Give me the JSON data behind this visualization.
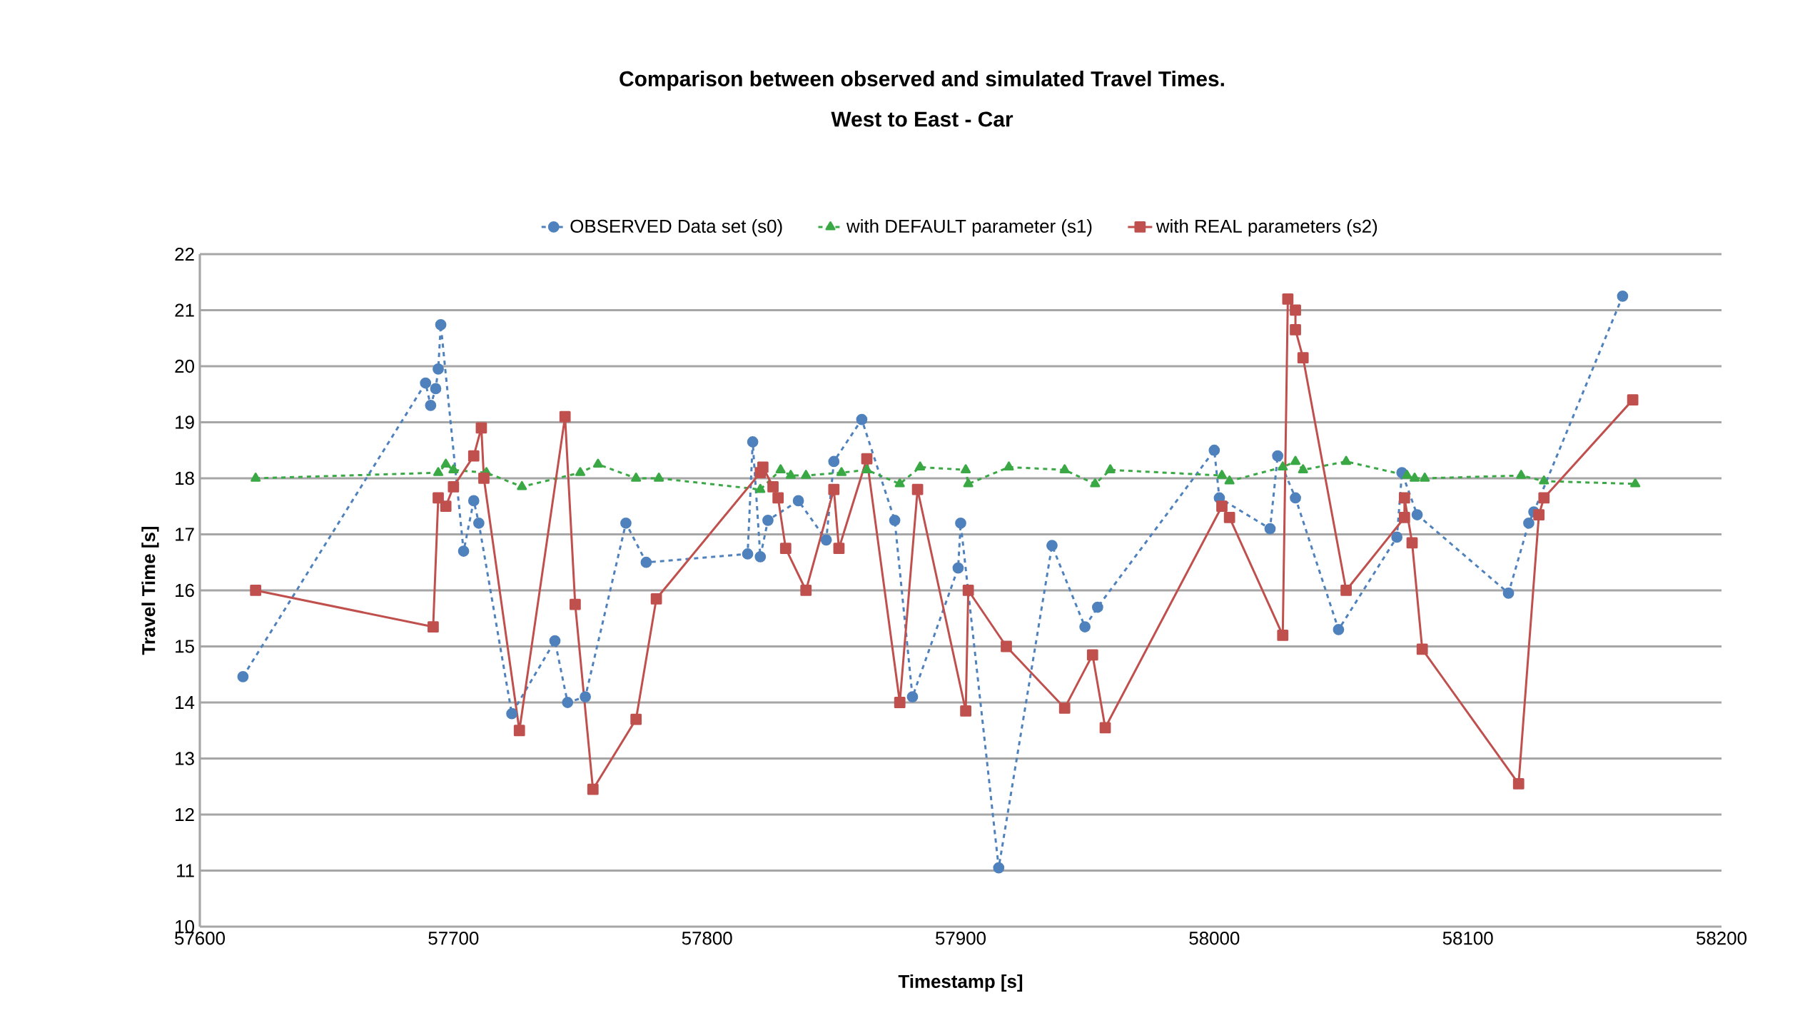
{
  "chart_data": {
    "type": "line",
    "title": "Comparison between observed and simulated Travel Times.",
    "subtitle": "West to East - Car",
    "xlabel": "Timestamp [s]",
    "ylabel": "Travel Time [s]",
    "xlim": [
      57600,
      58200
    ],
    "xticks": [
      57600,
      57700,
      57800,
      57900,
      58000,
      58100,
      58200
    ],
    "ylim": [
      10,
      22
    ],
    "yticks": [
      10,
      11,
      12,
      13,
      14,
      15,
      16,
      17,
      18,
      19,
      20,
      21,
      22
    ],
    "grid": "y",
    "legend": "top",
    "series": [
      {
        "name": "OBSERVED Data set (s0)",
        "color": "#4f81bd",
        "marker": "circle",
        "line_style": "dashed",
        "x": [
          57617,
          57689,
          57691,
          57693,
          57694,
          57695,
          57704,
          57708,
          57710,
          57723,
          57740,
          57745,
          57752,
          57768,
          57776,
          57816,
          57818,
          57821,
          57824,
          57836,
          57847,
          57850,
          57861,
          57874,
          57881,
          57899,
          57900,
          57915,
          57936,
          57949,
          57954,
          58000,
          58002,
          58022,
          58025,
          58032,
          58049,
          58072,
          58074,
          58080,
          58116,
          58124,
          58126,
          58161
        ],
        "values": [
          14.46,
          19.7,
          19.3,
          19.6,
          19.95,
          20.74,
          16.7,
          17.6,
          17.2,
          13.8,
          15.1,
          14.0,
          14.1,
          17.2,
          16.5,
          16.65,
          18.65,
          16.6,
          17.25,
          17.6,
          16.9,
          18.3,
          19.05,
          17.25,
          14.1,
          16.4,
          17.2,
          11.05,
          16.8,
          15.35,
          15.7,
          18.5,
          17.65,
          17.1,
          18.4,
          17.65,
          15.3,
          16.95,
          18.1,
          17.35,
          15.95,
          17.2,
          17.4,
          21.25
        ]
      },
      {
        "name": "with DEFAULT parameter (s1)",
        "color": "#3aa845",
        "marker": "triangle",
        "line_style": "dashed",
        "x": [
          57622,
          57694,
          57697,
          57700,
          57713,
          57727,
          57750,
          57757,
          57772,
          57781,
          57821,
          57829,
          57833,
          57839,
          57853,
          57863,
          57876,
          57884,
          57902,
          57903,
          57919,
          57941,
          57953,
          57959,
          58003,
          58006,
          58027,
          58032,
          58035,
          58052,
          58076,
          58079,
          58083,
          58121,
          58130,
          58166
        ],
        "values": [
          18.0,
          18.1,
          18.25,
          18.15,
          18.1,
          17.85,
          18.1,
          18.25,
          18.0,
          18.0,
          17.8,
          18.15,
          18.05,
          18.05,
          18.1,
          18.15,
          17.9,
          18.2,
          18.15,
          17.9,
          18.2,
          18.15,
          17.9,
          18.15,
          18.05,
          17.95,
          18.2,
          18.3,
          18.15,
          18.3,
          18.05,
          18.0,
          18.0,
          18.05,
          17.95,
          17.9
        ]
      },
      {
        "name": "with REAL parameters (s2)",
        "color": "#c0504d",
        "marker": "square",
        "line_style": "solid",
        "x": [
          57622,
          57692,
          57694,
          57697,
          57700,
          57708,
          57711,
          57712,
          57726,
          57744,
          57748,
          57755,
          57772,
          57780,
          57821,
          57822,
          57826,
          57828,
          57831,
          57839,
          57850,
          57852,
          57863,
          57876,
          57883,
          57902,
          57903,
          57918,
          57941,
          57952,
          57957,
          58003,
          58006,
          58027,
          58029,
          58032,
          58032,
          58035,
          58052,
          58075,
          58075,
          58078,
          58082,
          58120,
          58128,
          58130,
          58165
        ],
        "values": [
          16.0,
          15.35,
          17.65,
          17.5,
          17.85,
          18.4,
          18.9,
          18.0,
          13.5,
          19.1,
          15.75,
          12.45,
          13.7,
          15.85,
          18.1,
          18.2,
          17.85,
          17.65,
          16.75,
          16.0,
          17.8,
          16.75,
          18.35,
          14.0,
          17.8,
          13.85,
          16.0,
          15.0,
          13.9,
          14.85,
          13.55,
          17.5,
          17.3,
          15.2,
          21.2,
          21.0,
          20.65,
          20.15,
          16.0,
          17.3,
          17.65,
          16.85,
          14.95,
          12.55,
          17.35,
          17.65,
          19.4
        ]
      }
    ]
  }
}
